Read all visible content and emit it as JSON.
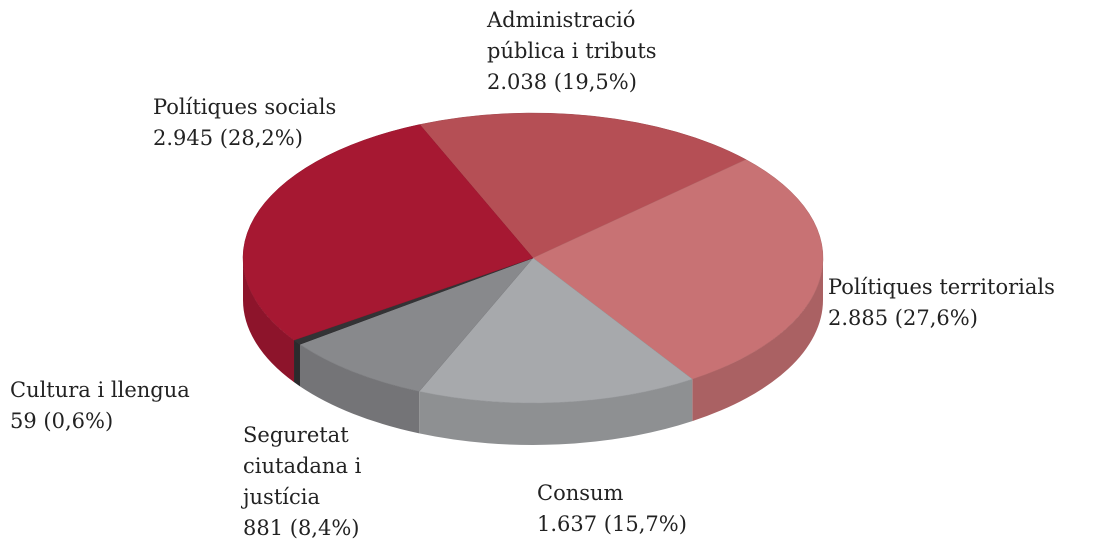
{
  "chart_data": {
    "type": "pie",
    "categories": [
      "Administració pública i tributs",
      "Polítiques territorials",
      "Consum",
      "Seguretat ciutadana i justícia",
      "Cultura i llengua",
      "Polítiques socials"
    ],
    "values": [
      2038,
      2885,
      1637,
      881,
      59,
      2945
    ],
    "value_labels": [
      "2.038 (19,5%)",
      "2.885 (27,6%)",
      "1.637 (15,7%)",
      "881 (8,4%)",
      "59 (0,6%)",
      "2.945 (28,2%)"
    ],
    "colors": [
      "#b54f55",
      "#c87274",
      "#a7a9ac",
      "#88898c",
      "#333335",
      "#a61832"
    ]
  }
}
